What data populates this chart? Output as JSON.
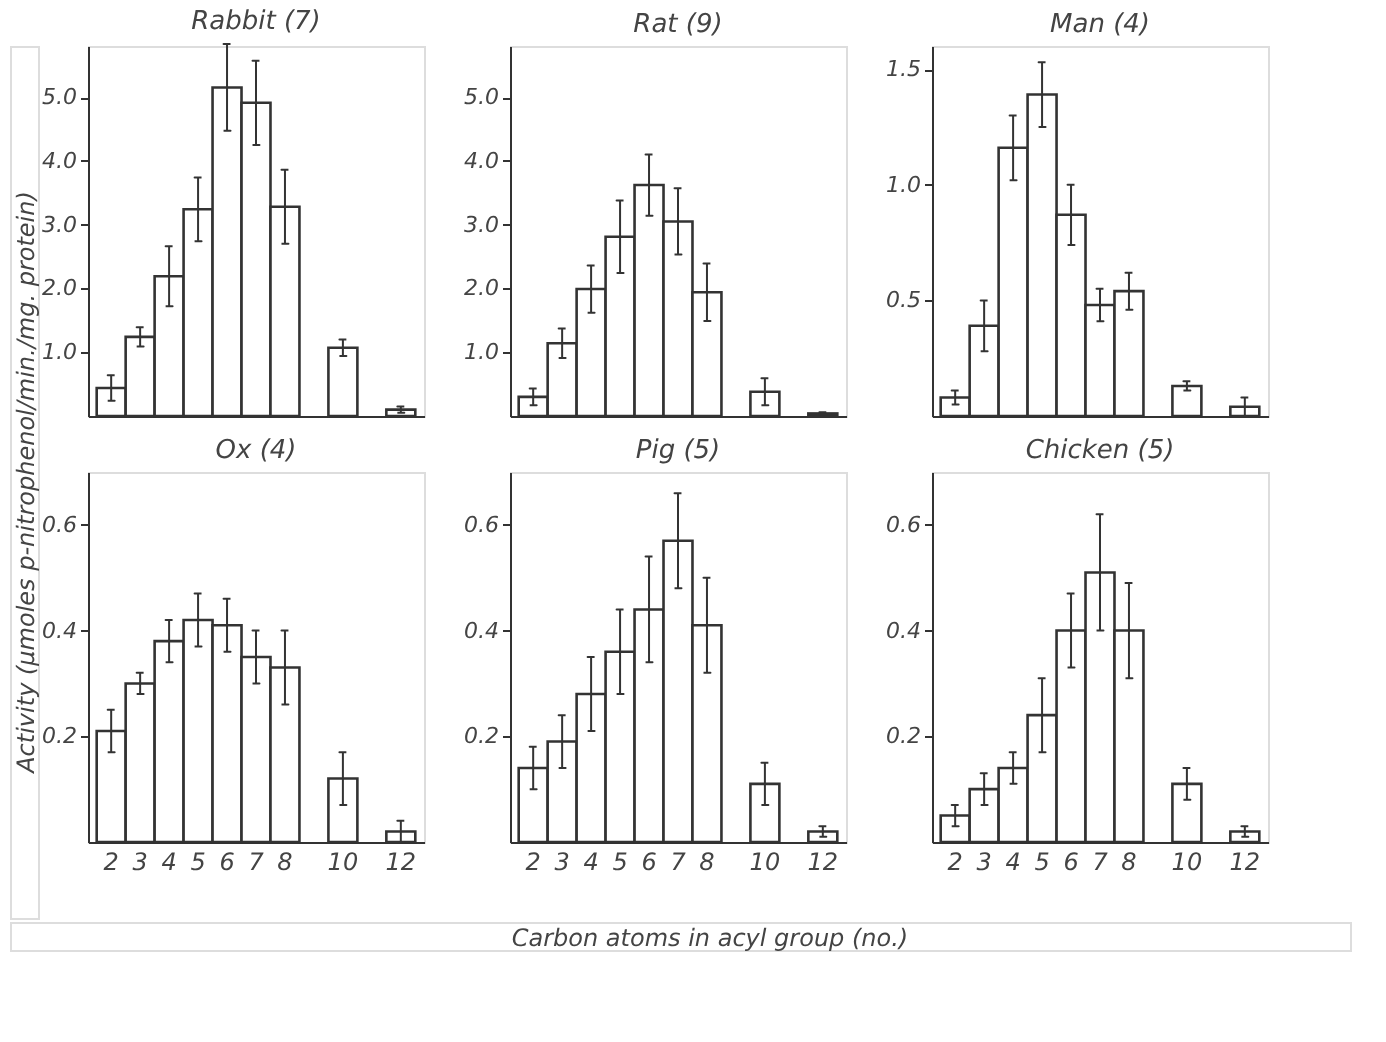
{
  "chart_data": [
    {
      "type": "bar",
      "title": "Rabbit (7)",
      "ylabel": "Activity (µmoles p-nitrophenol/min./mg. protein)",
      "categories": [
        "2",
        "3",
        "4",
        "5",
        "6",
        "7",
        "8",
        null,
        "10",
        null,
        "12"
      ],
      "color": "#333333",
      "tick_labels": "y",
      "values": [
        0.44,
        1.24,
        2.19,
        3.24,
        5.15,
        4.91,
        3.28,
        null,
        1.07,
        null,
        0.1
      ],
      "errors": [
        0.2,
        0.15,
        0.47,
        0.5,
        0.68,
        0.66,
        0.58,
        null,
        0.13,
        null,
        0.05
      ],
      "ylim": [
        0,
        5.8
      ],
      "yticks": [
        {
          "value": 1,
          "label": "1.0"
        },
        {
          "value": 2,
          "label": "2.0"
        },
        {
          "value": 3,
          "label": "3.0"
        },
        {
          "value": 4,
          "label": "4.0"
        },
        {
          "value": 5,
          "label": "5.0"
        }
      ]
    },
    {
      "type": "bar",
      "title": "Rat (9)",
      "categories": [
        "2",
        "3",
        "4",
        "5",
        "6",
        "7",
        "8",
        null,
        "10",
        null,
        "12"
      ],
      "color": "#333333",
      "tick_labels": "y",
      "values": [
        0.3,
        1.14,
        1.99,
        2.81,
        3.62,
        3.05,
        1.94,
        null,
        0.38,
        null,
        0.04
      ],
      "errors": [
        0.13,
        0.23,
        0.37,
        0.57,
        0.48,
        0.52,
        0.45,
        null,
        0.21,
        null,
        0.02
      ],
      "ylim": [
        0,
        5.8
      ],
      "yticks": [
        {
          "value": 1,
          "label": "1.0"
        },
        {
          "value": 2,
          "label": "2.0"
        },
        {
          "value": 3,
          "label": "3.0"
        },
        {
          "value": 4,
          "label": "4.0"
        },
        {
          "value": 5,
          "label": "5.0"
        }
      ]
    },
    {
      "type": "bar",
      "title": "Man (4)",
      "categories": [
        "2",
        "3",
        "4",
        "5",
        "6",
        "7",
        "8",
        null,
        "10",
        null,
        "12"
      ],
      "color": "#333333",
      "tick_labels": "y",
      "values": [
        0.08,
        0.39,
        1.16,
        1.39,
        0.87,
        0.48,
        0.54,
        null,
        0.13,
        null,
        0.04
      ],
      "errors": [
        0.03,
        0.11,
        0.14,
        0.14,
        0.13,
        0.07,
        0.08,
        null,
        0.02,
        null,
        0.04
      ],
      "ylim": [
        0,
        1.6
      ],
      "yticks": [
        0.5,
        {
          "value": 1,
          "label": "1.0"
        },
        1.5
      ]
    },
    {
      "type": "bar",
      "title": "Ox (4)",
      "categories": [
        "2",
        "3",
        "4",
        "5",
        "6",
        "7",
        "8",
        null,
        "10",
        null,
        "12"
      ],
      "color": "#333333",
      "values": [
        0.21,
        0.3,
        0.38,
        0.42,
        0.41,
        0.35,
        0.33,
        null,
        0.12,
        null,
        0.02
      ],
      "errors": [
        0.04,
        0.02,
        0.04,
        0.05,
        0.05,
        0.05,
        0.07,
        null,
        0.05,
        null,
        0.02
      ],
      "ylim": [
        0,
        0.7
      ],
      "yticks": [
        0.2,
        0.4,
        0.6
      ]
    },
    {
      "type": "bar",
      "title": "Pig (5)",
      "xlabel": "Carbon atoms in acyl group (no.)",
      "categories": [
        "2",
        "3",
        "4",
        "5",
        "6",
        "7",
        "8",
        null,
        "10",
        null,
        "12"
      ],
      "color": "#333333",
      "values": [
        0.14,
        0.19,
        0.28,
        0.36,
        0.44,
        0.57,
        0.41,
        null,
        0.11,
        null,
        0.02
      ],
      "errors": [
        0.04,
        0.05,
        0.07,
        0.08,
        0.1,
        0.09,
        0.09,
        null,
        0.04,
        null,
        0.01
      ],
      "ylim": [
        0,
        0.7
      ],
      "yticks": [
        0.2,
        0.4,
        0.6
      ]
    },
    {
      "type": "bar",
      "title": "Chicken (5)",
      "categories": [
        "2",
        "3",
        "4",
        "5",
        "6",
        "7",
        "8",
        null,
        "10",
        null,
        "12"
      ],
      "color": "#333333",
      "values": [
        0.05,
        0.1,
        0.14,
        0.24,
        0.4,
        0.51,
        0.4,
        null,
        0.11,
        null,
        0.02
      ],
      "errors": [
        0.02,
        0.03,
        0.03,
        0.07,
        0.07,
        0.11,
        0.09,
        null,
        0.03,
        null,
        0.01
      ],
      "ylim": [
        0,
        0.7
      ],
      "yticks": [
        0.2,
        0.4,
        0.6
      ]
    }
  ]
}
